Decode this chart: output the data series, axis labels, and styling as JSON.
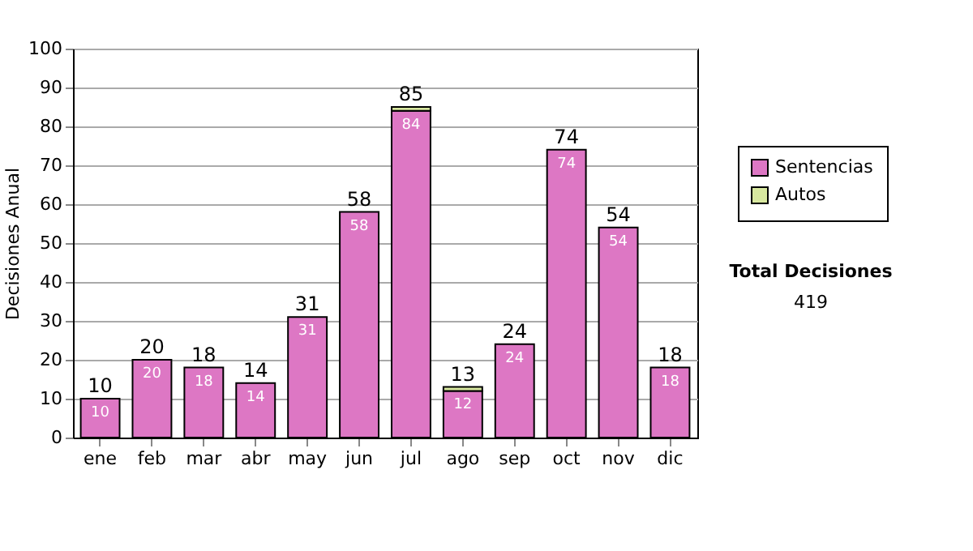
{
  "chart_data": {
    "type": "bar",
    "stacked": true,
    "ylabel": "Decisiones Anual",
    "categories": [
      "ene",
      "feb",
      "mar",
      "abr",
      "may",
      "jun",
      "jul",
      "ago",
      "sep",
      "oct",
      "nov",
      "dic"
    ],
    "series": [
      {
        "name": "Sentencias",
        "color": "#dd77c4",
        "values": [
          10,
          20,
          18,
          14,
          31,
          58,
          84,
          12,
          24,
          74,
          54,
          18
        ],
        "value_labels": [
          "10",
          "20",
          "18",
          "14",
          "31",
          "58",
          "84",
          "12",
          "24",
          "74",
          "54",
          "18"
        ]
      },
      {
        "name": "Autos",
        "color": "#d8e8a0",
        "values": [
          0,
          0,
          0,
          0,
          0,
          0,
          1,
          1,
          0,
          0,
          0,
          0
        ]
      }
    ],
    "totals": [
      "10",
      "20",
      "18",
      "14",
      "31",
      "58",
      "85",
      "13",
      "24",
      "74",
      "54",
      "18"
    ],
    "ylim": [
      0,
      100
    ],
    "yticks": [
      0,
      10,
      20,
      30,
      40,
      50,
      60,
      70,
      80,
      90,
      100
    ],
    "grid": "y",
    "legend": "right",
    "annotations": [
      "Total Decisiones",
      "419"
    ]
  }
}
